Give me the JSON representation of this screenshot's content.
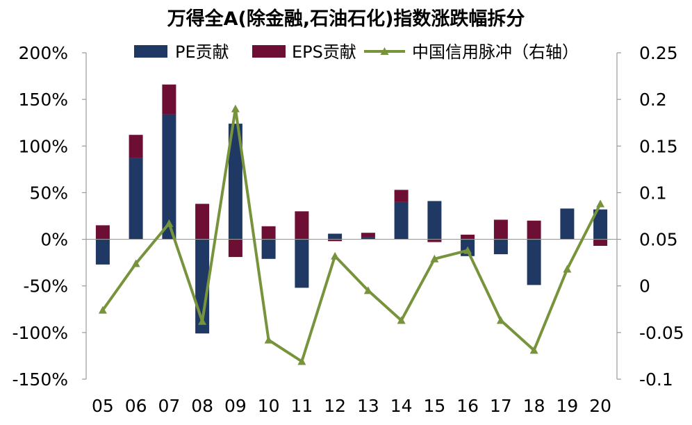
{
  "chart_data": {
    "type": "bar",
    "title": "万得全A(除金融,石油石化)指数涨跌幅拆分",
    "categories": [
      "05",
      "06",
      "07",
      "08",
      "09",
      "10",
      "11",
      "12",
      "13",
      "14",
      "15",
      "16",
      "17",
      "18",
      "19",
      "20"
    ],
    "series": [
      {
        "name": "PE贡献",
        "type": "bar",
        "axis": "left",
        "color": "#203864",
        "values": [
          -27,
          87,
          134,
          -101,
          124,
          -21,
          -52,
          6,
          2,
          40,
          41,
          -18,
          -16,
          -49,
          33,
          32
        ]
      },
      {
        "name": "EPS贡献",
        "type": "bar",
        "axis": "left",
        "color": "#6d0f35",
        "values": [
          15,
          25,
          32,
          38,
          -19,
          14,
          30,
          -2,
          5,
          13,
          -3,
          5,
          21,
          20,
          0,
          -7
        ]
      },
      {
        "name": "中国信用脉冲（右轴）",
        "type": "line",
        "axis": "right",
        "color": "#77933c",
        "values": [
          -0.026,
          0.024,
          0.067,
          -0.038,
          0.19,
          -0.058,
          -0.081,
          0.032,
          -0.005,
          -0.037,
          0.029,
          0.038,
          -0.037,
          -0.069,
          0.018,
          0.088
        ]
      }
    ],
    "y_left": {
      "min": -150,
      "max": 200,
      "step": 50,
      "ticks": [
        "200%",
        "150%",
        "100%",
        "50%",
        "0%",
        "-50%",
        "-100%",
        "-150%"
      ]
    },
    "y_right": {
      "min": -0.1,
      "max": 0.25,
      "step": 0.05,
      "ticks": [
        "0.25",
        "0.2",
        "0.15",
        "0.1",
        "0.05",
        "0",
        "-0.05",
        "-0.1"
      ]
    },
    "legend": {
      "position": "top-center"
    },
    "grid": false
  }
}
